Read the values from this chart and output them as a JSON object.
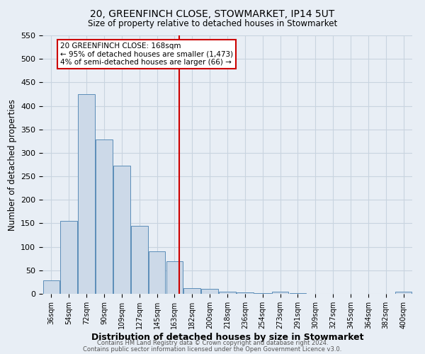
{
  "title1": "20, GREENFINCH CLOSE, STOWMARKET, IP14 5UT",
  "title2": "Size of property relative to detached houses in Stowmarket",
  "xlabel": "Distribution of detached houses by size in Stowmarket",
  "ylabel": "Number of detached properties",
  "bar_labels": [
    "36sqm",
    "54sqm",
    "72sqm",
    "90sqm",
    "109sqm",
    "127sqm",
    "145sqm",
    "163sqm",
    "182sqm",
    "200sqm",
    "218sqm",
    "236sqm",
    "254sqm",
    "273sqm",
    "291sqm",
    "309sqm",
    "327sqm",
    "345sqm",
    "364sqm",
    "382sqm",
    "400sqm"
  ],
  "bar_heights": [
    28,
    155,
    425,
    328,
    273,
    145,
    91,
    69,
    12,
    10,
    5,
    3,
    1,
    4,
    1,
    0,
    0,
    0,
    0,
    0,
    4
  ],
  "bar_color": "#ccd9e8",
  "bar_edge_color": "#5b8db8",
  "grid_color": "#c8d4e0",
  "background_color": "#e8eef5",
  "vline_color": "#cc0000",
  "annotation_text": "20 GREENFINCH CLOSE: 168sqm\n← 95% of detached houses are smaller (1,473)\n4% of semi-detached houses are larger (66) →",
  "annotation_box_color": "#ffffff",
  "annotation_border_color": "#cc0000",
  "footer1": "Contains HM Land Registry data © Crown copyright and database right 2024.",
  "footer2": "Contains public sector information licensed under the Open Government Licence v3.0.",
  "yticks": [
    0,
    50,
    100,
    150,
    200,
    250,
    300,
    350,
    400,
    450,
    500,
    550
  ],
  "ylim": [
    0,
    550
  ]
}
